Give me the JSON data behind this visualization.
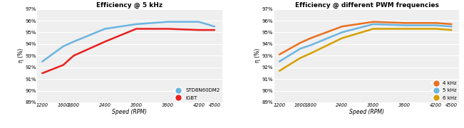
{
  "speed": [
    1200,
    1600,
    1800,
    2400,
    3000,
    3600,
    4200,
    4500
  ],
  "chart1": {
    "title": "Efficiency @ 5 kHz",
    "std8n60dm2": [
      92.5,
      93.8,
      94.2,
      95.3,
      95.7,
      95.9,
      95.9,
      95.5
    ],
    "igbt": [
      91.5,
      92.2,
      93.0,
      94.2,
      95.3,
      95.3,
      95.2,
      95.2
    ],
    "std_color": "#6BB5E0",
    "igbt_color": "#E82020",
    "legend_labels": [
      "STD8N60DM2",
      "IGBT"
    ]
  },
  "chart2": {
    "title": "Efficiency @ different PWM frequencies",
    "khz4": [
      93.1,
      94.1,
      94.5,
      95.5,
      95.9,
      95.8,
      95.8,
      95.7
    ],
    "khz5": [
      92.5,
      93.6,
      93.9,
      95.0,
      95.7,
      95.6,
      95.6,
      95.5
    ],
    "khz6": [
      91.7,
      92.8,
      93.2,
      94.5,
      95.3,
      95.3,
      95.3,
      95.2
    ],
    "khz4_color": "#E87020",
    "khz5_color": "#6BB5E0",
    "khz6_color": "#D4A000",
    "legend_labels": [
      "4 kHz",
      "5 kHz",
      "6 kHz"
    ]
  },
  "ylabel": "η (%)",
  "xlabel": "Speed (RPM)",
  "ylim": [
    89,
    97
  ],
  "yticks": [
    89,
    90,
    91,
    92,
    93,
    94,
    95,
    96,
    97
  ],
  "ytick_labels": [
    "89%",
    "90%",
    "91%",
    "92%",
    "93%",
    "94%",
    "95%",
    "96%",
    "97%"
  ],
  "xtick_labels": [
    "1200",
    "1600",
    "1800",
    "2400",
    "3000",
    "3600",
    "4200",
    "4500"
  ],
  "bg_color": "#EFEFEF",
  "line_width": 1.8,
  "grid_color": "#FFFFFF"
}
